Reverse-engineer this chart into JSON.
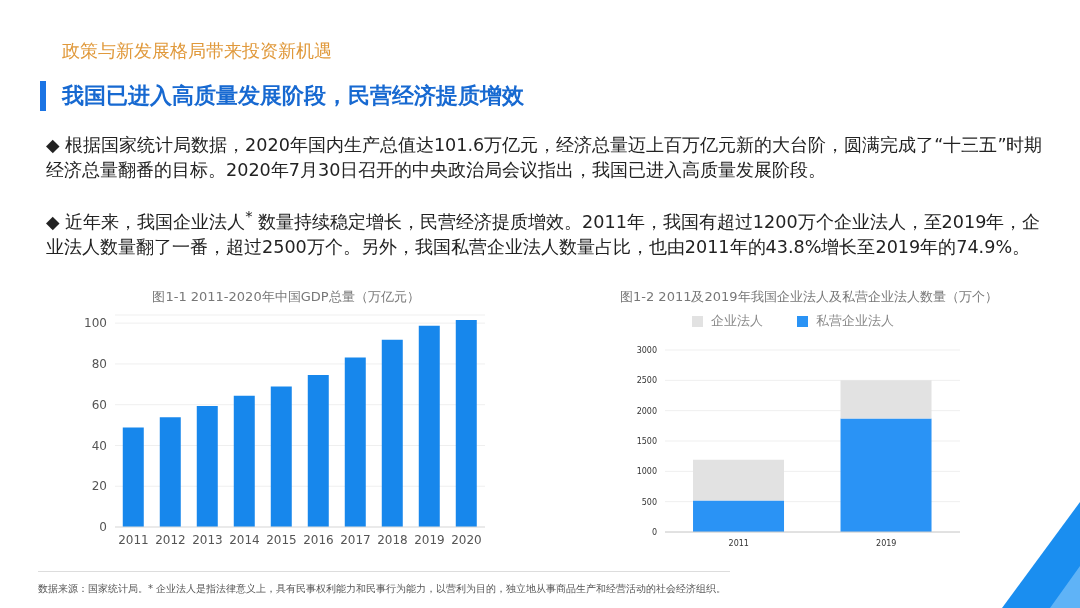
{
  "chart_data": [
    {
      "type": "other",
      "subtitle": "政策与新发展格局带来投资新机遇",
      "title": "我国已进入高质量发展阶段，民营经济提质增效",
      "annotations": [
        "◆ 根据国家统计局数据，2020年国内生产总值达101.6万亿元，经济总量迈上百万亿元新的大台阶，圆满完成了“十三五”时期经济总量翻番的目标。2020年7月30日召开的中央政治局会议指出，我国已进入高质量发展阶段。",
        "◆ 近年来，我国企业法人$^{*}$ 数量持续稳定增长，民营经济提质增效。2011年，我国有超过1200万个企业法人，至2019年，企业法人数量翻了一番，超过2500万个。另外，我国私营企业法人数量占比，也由2011年的43.8%增长至2019年的74.9%。"
      ]
    },
    {
      "type": "bar",
      "title": "图1-1 2011-2020年中国GDP总量（万亿元）",
      "categories": [
        "2011",
        "2012",
        "2013",
        "2014",
        "2015",
        "2016",
        "2017",
        "2018",
        "2019",
        "2020"
      ],
      "values": [
        48.8,
        53.9,
        59.3,
        64.4,
        68.9,
        74.6,
        83.2,
        91.9,
        98.7,
        101.6
      ],
      "color": "#1787ec",
      "ylim": [
        0,
        104
      ],
      "yticks": [
        0,
        20,
        40,
        60,
        80,
        100
      ],
      "grid": "y"
    },
    {
      "type": "bar",
      "stacked": true,
      "title": "图1-2 2011及2019年我国企业法人及私营企业法人数量（万个）",
      "categories": [
        "2011",
        "2019"
      ],
      "series": [
        {
          "name": "私营企业法人",
          "color": "#2a93f5",
          "values": [
            520,
            1870
          ]
        },
        {
          "name": "企业法人",
          "color": "#e2e2e2",
          "values": [
            670,
            630
          ]
        }
      ],
      "ylim": [
        0,
        3000
      ],
      "yticks": [
        0,
        500,
        1000,
        1500,
        2000,
        2500,
        3000
      ],
      "grid": "y",
      "legend": "top"
    },
    {
      "type": "other",
      "annotations": [
        "数据来源：国家统计局。* 企业法人是指法律意义上，具有民事权利能力和民事行为能力，以营利为目的，独立地从事商品生产和经营活动的社会经济组织。"
      ]
    }
  ]
}
